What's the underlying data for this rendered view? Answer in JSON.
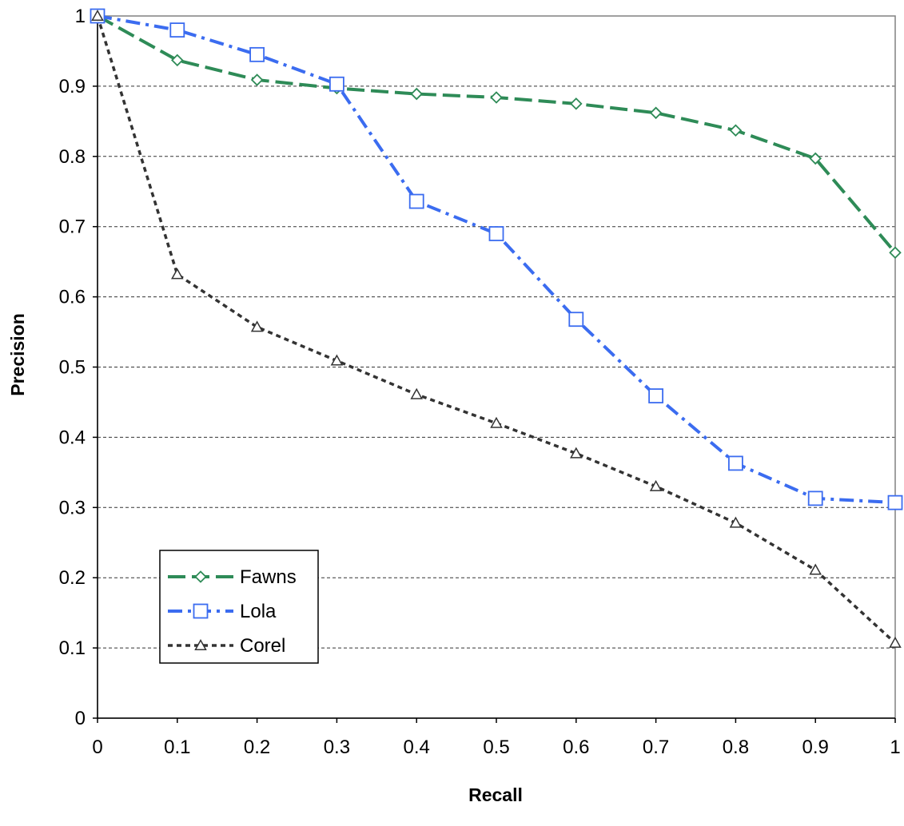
{
  "chart_data": {
    "type": "line",
    "xlabel": "Recall",
    "ylabel": "Precision",
    "x": [
      0,
      0.1,
      0.2,
      0.3,
      0.4,
      0.5,
      0.6,
      0.7,
      0.8,
      0.9,
      1
    ],
    "xlim": [
      0,
      1
    ],
    "ylim": [
      0,
      1
    ],
    "x_ticks": [
      "0",
      "0.1",
      "0.2",
      "0.3",
      "0.4",
      "0.5",
      "0.6",
      "0.7",
      "0.8",
      "0.9",
      "1"
    ],
    "y_ticks": [
      "0",
      "0.1",
      "0.2",
      "0.3",
      "0.4",
      "0.5",
      "0.6",
      "0.7",
      "0.8",
      "0.9",
      "1"
    ],
    "grid": "horizontal dashed",
    "legend_position": "bottom-left",
    "series": [
      {
        "name": "Fawns",
        "color": "#2e8b57",
        "marker": "diamond",
        "dash": "long-dash",
        "values": [
          1.0,
          0.937,
          0.909,
          0.897,
          0.889,
          0.884,
          0.875,
          0.862,
          0.837,
          0.797,
          0.663
        ]
      },
      {
        "name": "Lola",
        "color": "#3b6cf0",
        "marker": "square",
        "dash": "dash-dot",
        "values": [
          1.0,
          0.98,
          0.945,
          0.903,
          0.736,
          0.69,
          0.568,
          0.459,
          0.363,
          0.313,
          0.307
        ]
      },
      {
        "name": "Corel",
        "color": "#333333",
        "marker": "triangle",
        "dash": "short-dash",
        "values": [
          1.0,
          0.632,
          0.557,
          0.509,
          0.461,
          0.42,
          0.377,
          0.33,
          0.278,
          0.211,
          0.107
        ]
      }
    ]
  }
}
